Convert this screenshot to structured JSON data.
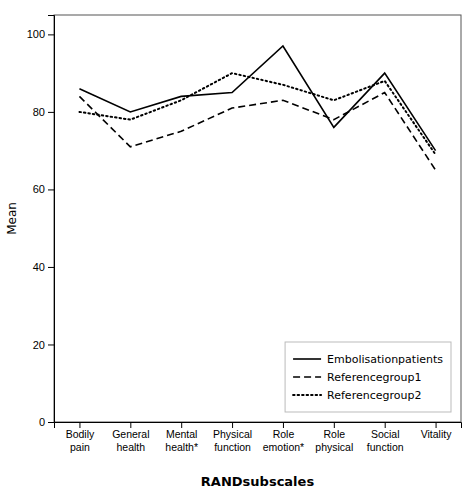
{
  "chart_data": {
    "type": "line",
    "categories": [
      "Bodily\npain",
      "General\nhealth",
      "Mental\nhealth*",
      "Physical\nfunction",
      "Role\nemotion*",
      "Role\nphysical",
      "Social\nfunction",
      "Vitality"
    ],
    "series": [
      {
        "name": "Embolisationpatients",
        "color": "#000000",
        "line_style": "solid",
        "values": [
          86,
          80,
          84,
          85,
          97,
          76,
          90,
          70
        ]
      },
      {
        "name": "Referencegroup1",
        "color": "#000000",
        "line_style": "dashed",
        "values": [
          84,
          71,
          75,
          81,
          83,
          78,
          85,
          65
        ]
      },
      {
        "name": "Referencegroup2",
        "color": "#000000",
        "line_style": "dotted",
        "values": [
          80,
          78,
          83,
          90,
          87,
          83,
          88,
          69
        ]
      }
    ],
    "x_label": "RANDsubscales",
    "y_label": "Mean",
    "ylim": [
      0,
      105
    ],
    "yticks": [
      0,
      20,
      40,
      60,
      80,
      100
    ],
    "grid": false,
    "legend": "lower right"
  }
}
